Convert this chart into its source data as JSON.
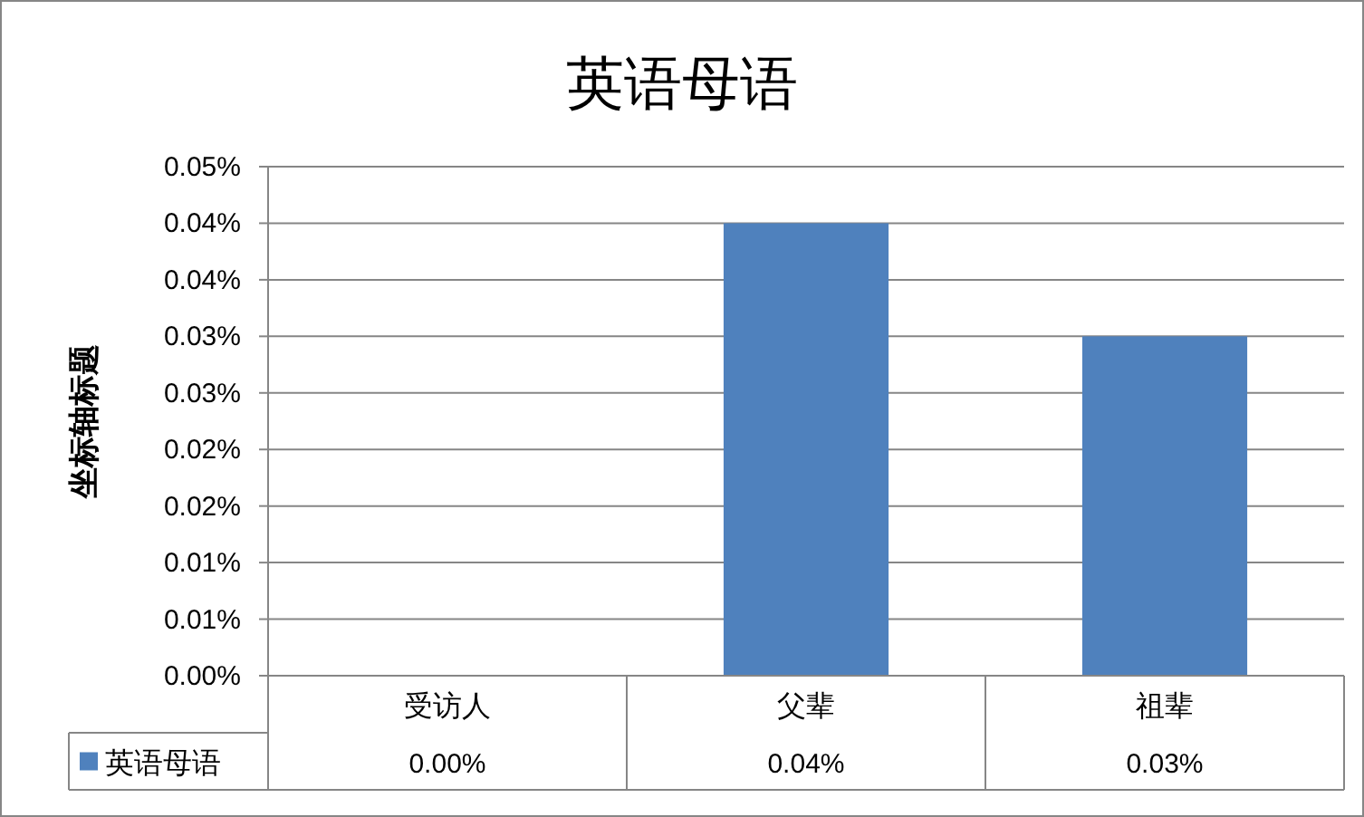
{
  "chart_data": {
    "type": "bar",
    "title": "英语母语",
    "ylabel": "坐标轴标题",
    "categories": [
      "受访人",
      "父辈",
      "祖辈"
    ],
    "series": [
      {
        "name": "英语母语",
        "color": "#4f81bd",
        "values": [
          0,
          0.04,
          0.03
        ],
        "value_labels": [
          "0.00%",
          "0.04%",
          "0.03%"
        ]
      }
    ],
    "ylim": [
      0,
      0.045
    ],
    "yticks": [
      {
        "value": 0,
        "label": "0.00%"
      },
      {
        "value": 0.005,
        "label": "0.01%"
      },
      {
        "value": 0.01,
        "label": "0.01%"
      },
      {
        "value": 0.015,
        "label": "0.02%"
      },
      {
        "value": 0.02,
        "label": "0.02%"
      },
      {
        "value": 0.025,
        "label": "0.03%"
      },
      {
        "value": 0.03,
        "label": "0.03%"
      },
      {
        "value": 0.035,
        "label": "0.04%"
      },
      {
        "value": 0.04,
        "label": "0.04%"
      },
      {
        "value": 0.045,
        "label": "0.05%"
      }
    ],
    "grid": "y"
  }
}
